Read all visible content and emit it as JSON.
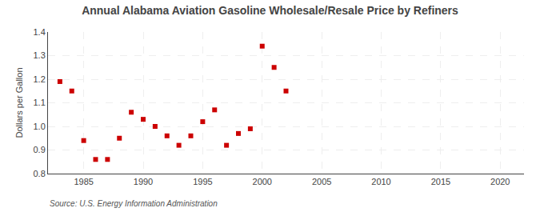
{
  "chart_data": {
    "type": "scatter",
    "title": "Annual Alabama Aviation Gasoline Wholesale/Resale Price by Refiners",
    "ylabel": "Dollars per Gallon",
    "annotations": [
      "Source: U.S. Energy Information Administration"
    ],
    "x": [
      1983,
      1984,
      1985,
      1986,
      1987,
      1988,
      1989,
      1990,
      1991,
      1992,
      1993,
      1994,
      1995,
      1996,
      1997,
      1998,
      1999,
      2000,
      2001,
      2002
    ],
    "values": [
      1.19,
      1.15,
      0.94,
      0.86,
      0.86,
      0.95,
      1.06,
      1.03,
      1.0,
      0.96,
      0.92,
      0.96,
      1.02,
      1.07,
      0.92,
      0.97,
      0.99,
      1.34,
      1.25,
      1.15
    ],
    "color": "#cc0000",
    "marker": "square",
    "xlim": [
      1982,
      2022
    ],
    "ylim": [
      0.8,
      1.4
    ],
    "xticks": [
      1985,
      1990,
      1995,
      2000,
      2005,
      2010,
      2015,
      2020
    ],
    "yticks": [
      0.8,
      0.9,
      {
        "value": 1.0,
        "label": "1.0"
      },
      1.1,
      1.2,
      1.3,
      1.4
    ],
    "grid": true
  }
}
